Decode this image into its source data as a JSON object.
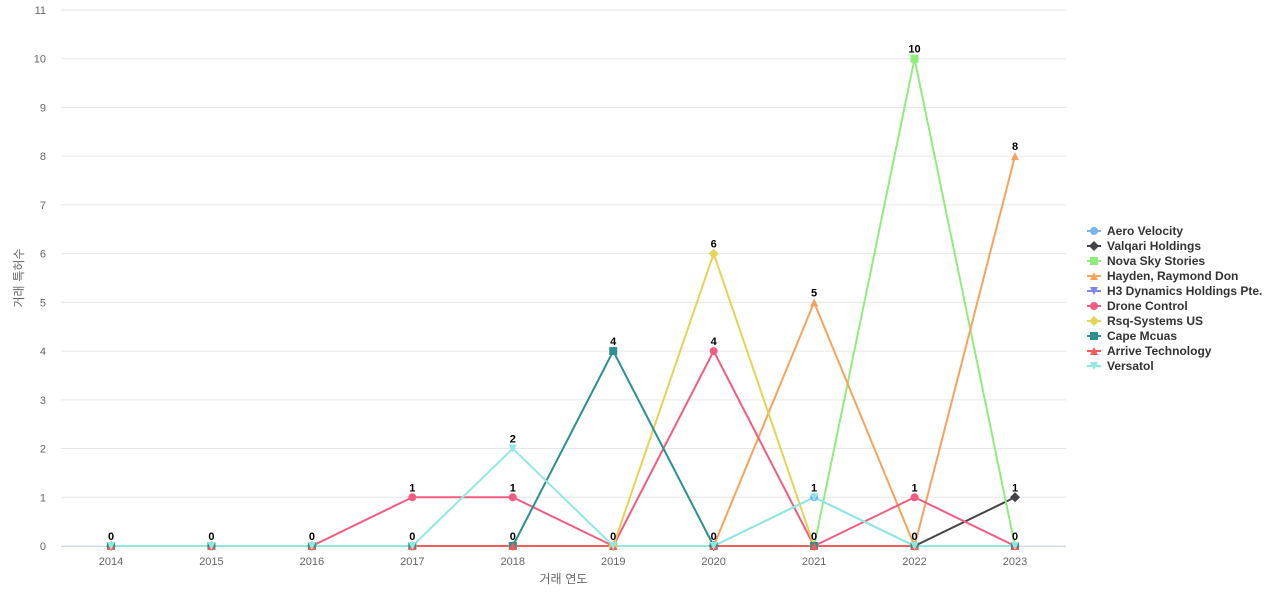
{
  "chart_data": {
    "type": "line",
    "xlabel": "거래 연도",
    "ylabel": "거래 특허수",
    "ylim": [
      0,
      11
    ],
    "yticks": [
      0,
      1,
      2,
      3,
      4,
      5,
      6,
      7,
      8,
      9,
      10,
      11
    ],
    "grid": true,
    "legend_position": "right",
    "categories": [
      "2014",
      "2015",
      "2016",
      "2017",
      "2018",
      "2019",
      "2020",
      "2021",
      "2022",
      "2023"
    ],
    "series": [
      {
        "name": "Aero Velocity",
        "color": "#7cb5ec",
        "marker": "circle",
        "values": [
          0,
          0,
          0,
          0,
          0,
          0,
          0,
          1,
          0,
          0
        ]
      },
      {
        "name": "Valqari Holdings",
        "color": "#434348",
        "marker": "diamond",
        "values": [
          0,
          0,
          0,
          0,
          0,
          0,
          0,
          0,
          0,
          1
        ]
      },
      {
        "name": "Nova Sky Stories",
        "color": "#90ed7d",
        "marker": "square",
        "values": [
          0,
          0,
          0,
          0,
          0,
          0,
          0,
          0,
          10,
          0
        ]
      },
      {
        "name": "Hayden, Raymond Don",
        "color": "#f7a35c",
        "marker": "triangle",
        "values": [
          0,
          0,
          0,
          0,
          0,
          0,
          0,
          5,
          0,
          8
        ]
      },
      {
        "name": "H3 Dynamics Holdings Pte.",
        "color": "#8085e9",
        "marker": "triangle-down",
        "values": [
          0,
          0,
          0,
          0,
          0,
          0,
          0,
          0,
          0,
          0
        ]
      },
      {
        "name": "Drone Control",
        "color": "#f15c80",
        "marker": "circle",
        "values": [
          0,
          0,
          0,
          1,
          1,
          0,
          4,
          0,
          1,
          0
        ]
      },
      {
        "name": "Rsq-Systems US",
        "color": "#e4d354",
        "marker": "diamond",
        "values": [
          0,
          0,
          0,
          0,
          0,
          0,
          6,
          0,
          0,
          0
        ]
      },
      {
        "name": "Cape Mcuas",
        "color": "#2b908f",
        "marker": "square",
        "values": [
          0,
          0,
          0,
          0,
          0,
          4,
          0,
          0,
          0,
          0
        ]
      },
      {
        "name": "Arrive Technology",
        "color": "#f45b5b",
        "marker": "triangle",
        "values": [
          0,
          0,
          0,
          0,
          0,
          0,
          0,
          0,
          0,
          0
        ]
      },
      {
        "name": "Versatol",
        "color": "#91e8e1",
        "marker": "triangle-down",
        "values": [
          0,
          0,
          0,
          0,
          2,
          0,
          0,
          1,
          0,
          0
        ]
      }
    ],
    "data_labels": [
      {
        "x": "2014",
        "value": 0
      },
      {
        "x": "2015",
        "value": 0
      },
      {
        "x": "2016",
        "value": 0
      },
      {
        "x": "2017",
        "value": 1
      },
      {
        "x": "2017",
        "value": 0
      },
      {
        "x": "2018",
        "value": 2
      },
      {
        "x": "2018",
        "value": 1
      },
      {
        "x": "2018",
        "value": 0
      },
      {
        "x": "2019",
        "value": 4
      },
      {
        "x": "2019",
        "value": 0
      },
      {
        "x": "2020",
        "value": 6
      },
      {
        "x": "2020",
        "value": 4
      },
      {
        "x": "2020",
        "value": 0
      },
      {
        "x": "2021",
        "value": 5
      },
      {
        "x": "2021",
        "value": 1
      },
      {
        "x": "2021",
        "value": 0
      },
      {
        "x": "2022",
        "value": 10
      },
      {
        "x": "2022",
        "value": 1
      },
      {
        "x": "2022",
        "value": 0
      },
      {
        "x": "2023",
        "value": 8
      },
      {
        "x": "2023",
        "value": 1
      },
      {
        "x": "2023",
        "value": 0
      }
    ]
  }
}
